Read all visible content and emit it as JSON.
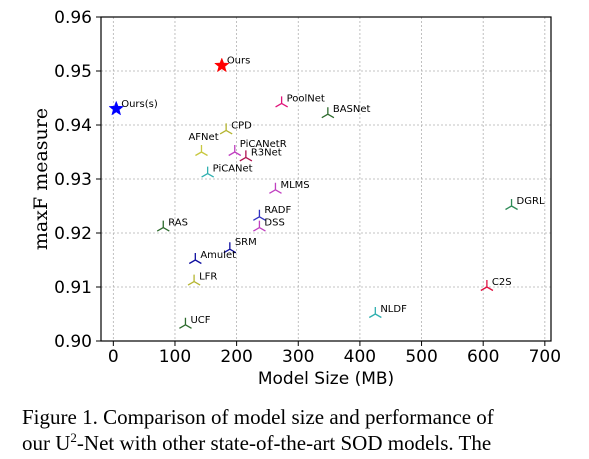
{
  "chart_data": {
    "type": "scatter",
    "xlabel": "Model Size (MB)",
    "ylabel": "maxF measure",
    "xlim": [
      -20,
      710
    ],
    "ylim": [
      0.9,
      0.96
    ],
    "xticks": [
      0,
      100,
      200,
      300,
      400,
      500,
      600,
      700
    ],
    "yticks": [
      "0.90",
      "0.91",
      "0.92",
      "0.93",
      "0.94",
      "0.95",
      "0.96"
    ],
    "grid": true,
    "points": [
      {
        "label": "Ours",
        "x": 176,
        "y": 0.951,
        "marker": "star",
        "color": "#ff0000"
      },
      {
        "label": "Ours(s)",
        "x": 4.7,
        "y": 0.943,
        "marker": "star",
        "color": "#0000ff"
      },
      {
        "label": "PoolNet",
        "x": 273,
        "y": 0.944,
        "marker": "tri",
        "color": "#e0147a"
      },
      {
        "label": "BASNet",
        "x": 348,
        "y": 0.942,
        "marker": "tri",
        "color": "#2e6b2e"
      },
      {
        "label": "CPD",
        "x": 183,
        "y": 0.939,
        "marker": "tri",
        "color": "#b5b530"
      },
      {
        "label": "AFNet",
        "x": 143,
        "y": 0.935,
        "marker": "tri",
        "color": "#c8c840"
      },
      {
        "label": "PiCANetR",
        "x": 197,
        "y": 0.935,
        "marker": "tri",
        "color": "#c040c0"
      },
      {
        "label": "R3Net",
        "x": 215,
        "y": 0.934,
        "marker": "tri",
        "color": "#b01050"
      },
      {
        "label": "PiCANet",
        "x": 153,
        "y": 0.931,
        "marker": "tri",
        "color": "#30b0b0"
      },
      {
        "label": "MLMS",
        "x": 263,
        "y": 0.928,
        "marker": "tri",
        "color": "#c040c0"
      },
      {
        "label": "RADF",
        "x": 237,
        "y": 0.923,
        "marker": "tri",
        "color": "#3030c0"
      },
      {
        "label": "DSS",
        "x": 237,
        "y": 0.921,
        "marker": "tri",
        "color": "#c040c0"
      },
      {
        "label": "RAS",
        "x": 81,
        "y": 0.921,
        "marker": "tri",
        "color": "#2e6b2e"
      },
      {
        "label": "DGRL",
        "x": 646,
        "y": 0.925,
        "marker": "tri",
        "color": "#2e8b57"
      },
      {
        "label": "SRM",
        "x": 189,
        "y": 0.917,
        "marker": "tri",
        "color": "#1010a0"
      },
      {
        "label": "Amulet",
        "x": 133,
        "y": 0.915,
        "marker": "tri",
        "color": "#1010a0"
      },
      {
        "label": "LFR",
        "x": 131,
        "y": 0.911,
        "marker": "tri",
        "color": "#b5b530"
      },
      {
        "label": "C2S",
        "x": 606,
        "y": 0.91,
        "marker": "tri",
        "color": "#e01040"
      },
      {
        "label": "NLDF",
        "x": 425,
        "y": 0.905,
        "marker": "tri",
        "color": "#30b0b0"
      },
      {
        "label": "UCF",
        "x": 117,
        "y": 0.903,
        "marker": "tri",
        "color": "#2e6b2e"
      }
    ]
  },
  "caption": {
    "line1": "Figure 1.  Comparison of model size and performance of",
    "line2_a": "our U",
    "line2_sup": "2",
    "line2_b": "-Net with other state-of-the-art SOD models.  The"
  }
}
